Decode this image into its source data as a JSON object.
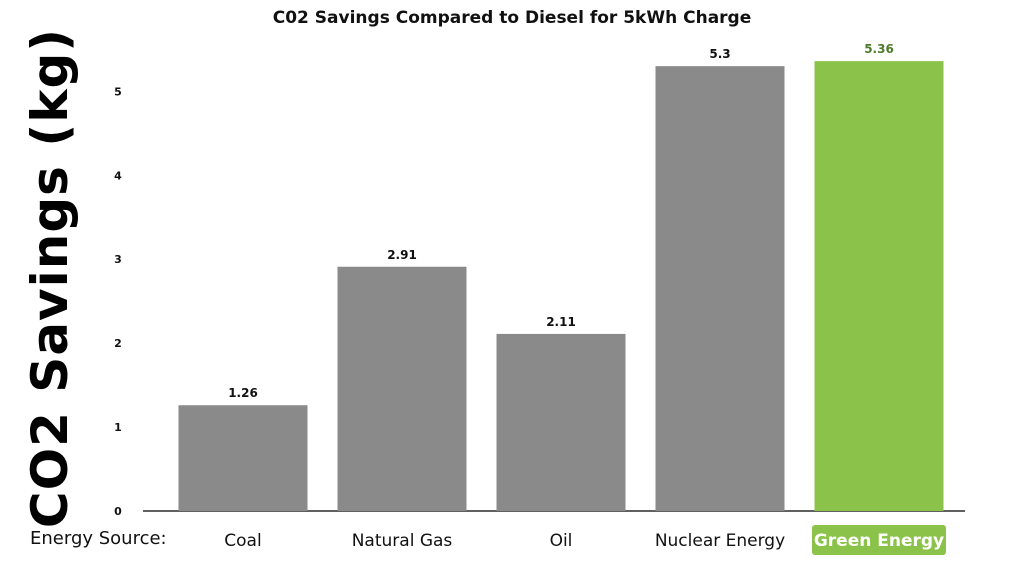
{
  "chart_data": {
    "type": "bar",
    "title": "C02 Savings Compared to Diesel for 5kWh Charge",
    "ylabel": "CO2 Savings (kg)",
    "xlabel": "Energy Source:",
    "categories": [
      "Coal",
      "Natural Gas",
      "Oil",
      "Nuclear Energy",
      "Green Energy"
    ],
    "values": [
      1.26,
      2.91,
      2.11,
      5.3,
      5.36
    ],
    "data_labels": [
      "1.26",
      "2.91",
      "2.11",
      "5.3",
      "5.36"
    ],
    "highlighted_category": "Green Energy",
    "y_ticks": [
      0,
      1,
      2,
      3,
      4,
      5
    ],
    "ylim": [
      0,
      5.85
    ],
    "grid": false,
    "legend": "none",
    "colors": {
      "bar": "#8a8a8a",
      "highlight": "#8bc34a",
      "highlight_label_text": "#ffffff",
      "highlight_value_text": "#4e7a2a",
      "axis": "#000000"
    }
  }
}
